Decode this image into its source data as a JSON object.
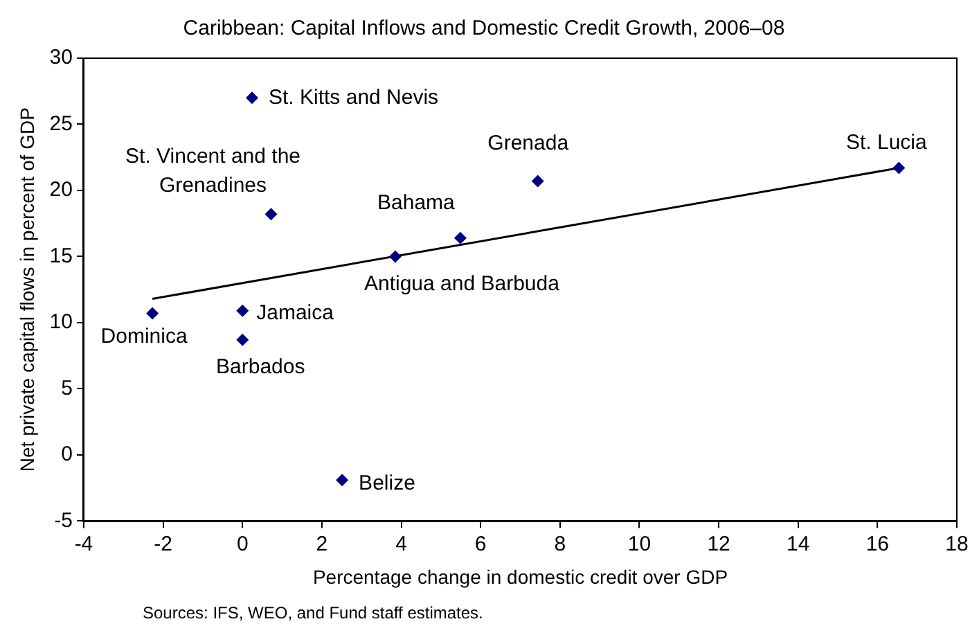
{
  "chart_data": {
    "type": "scatter",
    "title": "Caribbean: Capital Inflows and Domestic Credit Growth, 2006–08",
    "xlabel": "Percentage change in domestic credit over GDP",
    "ylabel": "Net private capital flows in percent of GDP",
    "series": [
      {
        "type": "scatter",
        "color": "#000080",
        "marker": "diamond",
        "x": [
          0.24,
          0.72,
          7.44,
          16.54,
          5.49,
          3.85,
          0,
          -2.27,
          0,
          2.51
        ],
        "values": [
          27.0,
          18.2,
          20.7,
          21.7,
          16.4,
          15.0,
          10.9,
          10.7,
          8.7,
          -1.9
        ]
      },
      {
        "type": "line",
        "color": "#000000",
        "marker": "none",
        "x": [
          -2.27,
          16.54
        ],
        "values": [
          11.8,
          21.7
        ]
      }
    ],
    "xlim": [
      -4,
      18
    ],
    "xticks": [
      -4,
      -2,
      0,
      2,
      4,
      6,
      8,
      10,
      12,
      14,
      16,
      18
    ],
    "ylim": [
      -5,
      30
    ],
    "yticks": [
      -5,
      0,
      5,
      10,
      15,
      20,
      25,
      30
    ],
    "grid": false,
    "legend": false,
    "annotations": [
      {
        "text": "St. Kitts and Nevis",
        "x": 0.24,
        "y": 27.0
      },
      {
        "text": "St. Vincent and the Grenadines",
        "x": 0.72,
        "y": 18.2
      },
      {
        "text": "Grenada",
        "x": 7.44,
        "y": 20.7
      },
      {
        "text": "St. Lucia",
        "x": 16.54,
        "y": 21.7
      },
      {
        "text": "Bahama",
        "x": 5.49,
        "y": 16.4
      },
      {
        "text": "Antigua and Barbuda",
        "x": 3.85,
        "y": 15.0
      },
      {
        "text": "Jamaica",
        "x": 0,
        "y": 10.9
      },
      {
        "text": "Dominica",
        "x": -2.27,
        "y": 10.7
      },
      {
        "text": "Barbados",
        "x": 0,
        "y": 8.7
      },
      {
        "text": "Belize",
        "x": 2.51,
        "y": -1.9
      },
      "Sources: IFS, WEO, and Fund staff estimates."
    ]
  }
}
